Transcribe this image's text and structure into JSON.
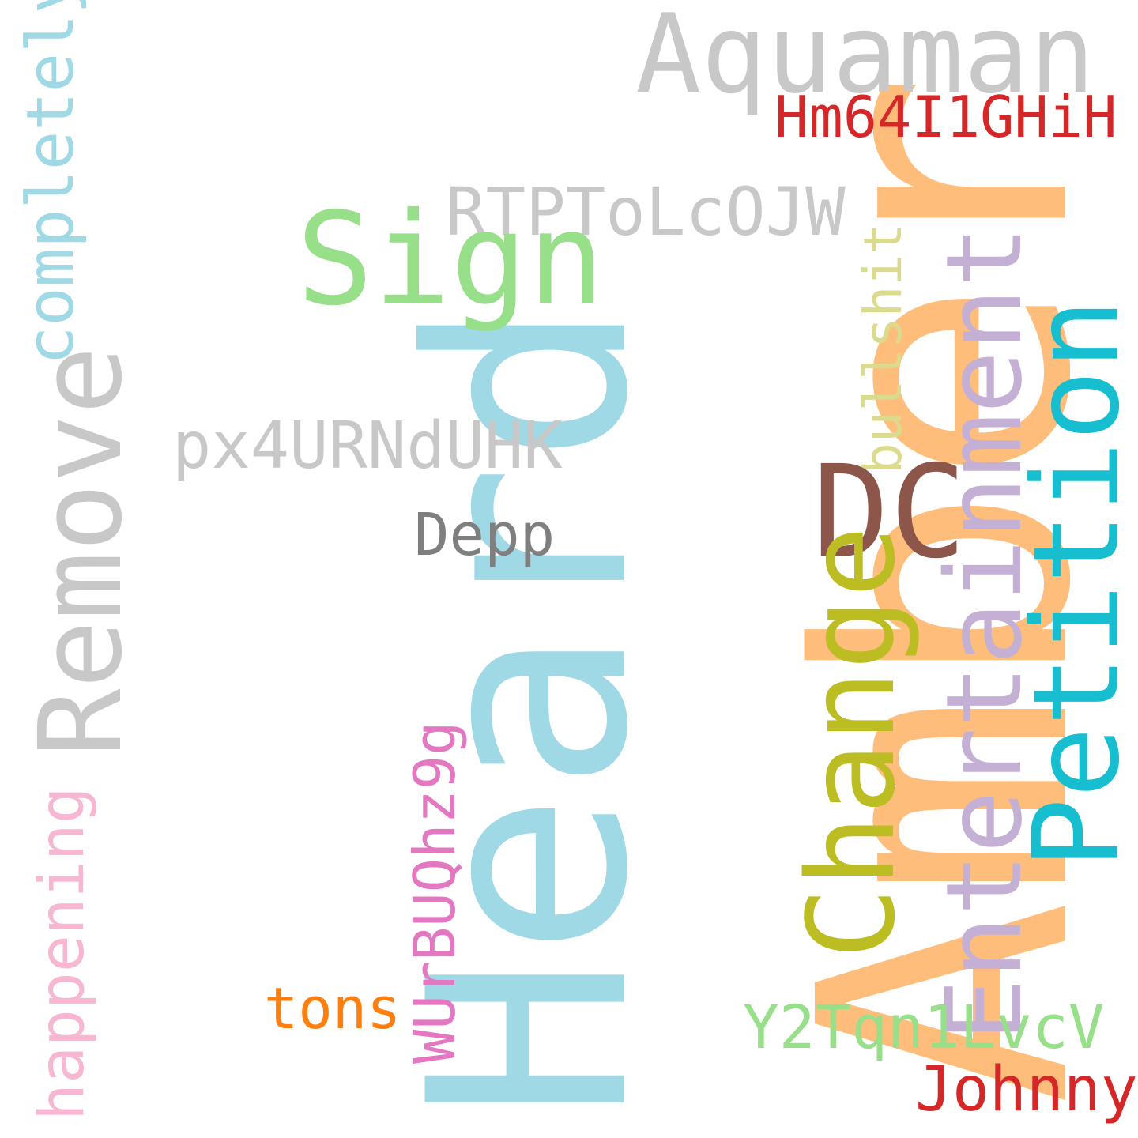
{
  "words": [
    {
      "id": "heard",
      "text": "Heard",
      "color": "#9ed9e5",
      "rotated": true
    },
    {
      "id": "amber",
      "text": "Amber",
      "color": "#ffbd7b",
      "rotated": true
    },
    {
      "id": "aquaman",
      "text": "Aquaman",
      "color": "#c8c8c8",
      "rotated": false
    },
    {
      "id": "hm64",
      "text": "Hm64I1GHiH",
      "color": "#d62728",
      "rotated": false
    },
    {
      "id": "completely",
      "text": "completely",
      "color": "#9ed9e5",
      "rotated": true
    },
    {
      "id": "rtpt",
      "text": "RTPToLcOJW",
      "color": "#c8c8c8",
      "rotated": false
    },
    {
      "id": "bullshit",
      "text": "bullshit",
      "color": "#dbdb8d",
      "rotated": true
    },
    {
      "id": "sign",
      "text": "Sign",
      "color": "#98df8a",
      "rotated": false
    },
    {
      "id": "remove",
      "text": "Remove",
      "color": "#c8c8c8",
      "rotated": true
    },
    {
      "id": "px4",
      "text": "px4URNdUHK",
      "color": "#c8c8c8",
      "rotated": false
    },
    {
      "id": "dc",
      "text": "DC",
      "color": "#8c564b",
      "rotated": false
    },
    {
      "id": "entertainment",
      "text": "Entertainment",
      "color": "#c5b0d5",
      "rotated": true
    },
    {
      "id": "petition",
      "text": "Petition",
      "color": "#17becf",
      "rotated": true
    },
    {
      "id": "depp",
      "text": "Depp",
      "color": "#7f7f7f",
      "rotated": false
    },
    {
      "id": "change",
      "text": "Change",
      "color": "#bcbd22",
      "rotated": true
    },
    {
      "id": "wur",
      "text": "WUrBUQhz9g",
      "color": "#e377c2",
      "rotated": true
    },
    {
      "id": "happening",
      "text": "happening",
      "color": "#f7b6d2",
      "rotated": true
    },
    {
      "id": "tons",
      "text": "tons",
      "color": "#ff7f0e",
      "rotated": false
    },
    {
      "id": "y2t",
      "text": "Y2Tqn1LvcV",
      "color": "#98df8a",
      "rotated": false
    },
    {
      "id": "johnny",
      "text": "Johnny",
      "color": "#d62728",
      "rotated": false
    }
  ]
}
